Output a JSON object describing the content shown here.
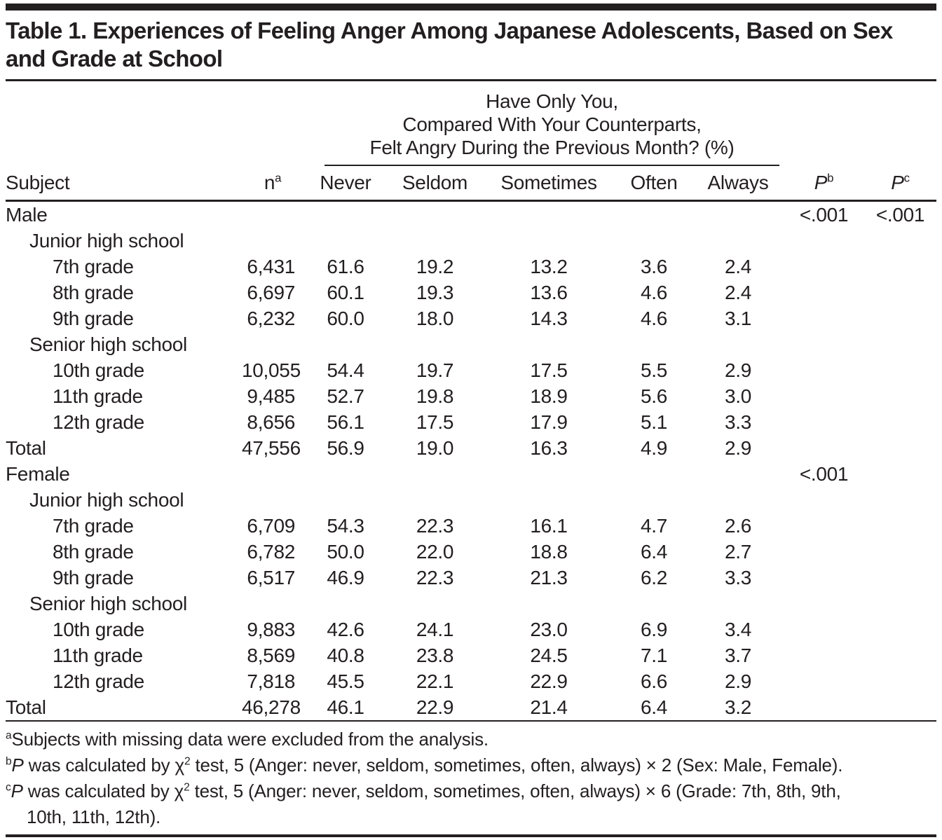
{
  "title": {
    "line1": "Table 1. Experiences of Feeling Anger Among Japanese Adolescents, Based on Sex",
    "line2": "and Grade at School"
  },
  "header": {
    "subject": "Subject",
    "n_base": "n",
    "n_sup": "a",
    "spanner": {
      "line1": "Have Only You,",
      "line2": "Compared With Your Counterparts,",
      "line3": "Felt Angry During the Previous Month? (%)"
    },
    "anger_columns": [
      "Never",
      "Seldom",
      "Sometimes",
      "Often",
      "Always"
    ],
    "p_b": {
      "base": "P",
      "sup": "b"
    },
    "p_c": {
      "base": "P",
      "sup": "c"
    }
  },
  "rows": [
    {
      "label": "Male",
      "indent": 0,
      "n": "",
      "never": "",
      "seldom": "",
      "sometimes": "",
      "often": "",
      "always": "",
      "p_b": "<.001",
      "p_c": "<.001"
    },
    {
      "label": "Junior high school",
      "indent": 1,
      "n": "",
      "never": "",
      "seldom": "",
      "sometimes": "",
      "often": "",
      "always": "",
      "p_b": "",
      "p_c": ""
    },
    {
      "label": "7th grade",
      "indent": 2,
      "n": "6,431",
      "never": "61.6",
      "seldom": "19.2",
      "sometimes": "13.2",
      "often": "3.6",
      "always": "2.4",
      "p_b": "",
      "p_c": ""
    },
    {
      "label": "8th grade",
      "indent": 2,
      "n": "6,697",
      "never": "60.1",
      "seldom": "19.3",
      "sometimes": "13.6",
      "often": "4.6",
      "always": "2.4",
      "p_b": "",
      "p_c": ""
    },
    {
      "label": "9th grade",
      "indent": 2,
      "n": "6,232",
      "never": "60.0",
      "seldom": "18.0",
      "sometimes": "14.3",
      "often": "4.6",
      "always": "3.1",
      "p_b": "",
      "p_c": ""
    },
    {
      "label": "Senior high school",
      "indent": 1,
      "n": "",
      "never": "",
      "seldom": "",
      "sometimes": "",
      "often": "",
      "always": "",
      "p_b": "",
      "p_c": ""
    },
    {
      "label": "10th grade",
      "indent": 2,
      "n": "10,055",
      "never": "54.4",
      "seldom": "19.7",
      "sometimes": "17.5",
      "often": "5.5",
      "always": "2.9",
      "p_b": "",
      "p_c": ""
    },
    {
      "label": "11th grade",
      "indent": 2,
      "n": "9,485",
      "never": "52.7",
      "seldom": "19.8",
      "sometimes": "18.9",
      "often": "5.6",
      "always": "3.0",
      "p_b": "",
      "p_c": ""
    },
    {
      "label": "12th grade",
      "indent": 2,
      "n": "8,656",
      "never": "56.1",
      "seldom": "17.5",
      "sometimes": "17.9",
      "often": "5.1",
      "always": "3.3",
      "p_b": "",
      "p_c": ""
    },
    {
      "label": "Total",
      "indent": 0,
      "n": "47,556",
      "never": "56.9",
      "seldom": "19.0",
      "sometimes": "16.3",
      "often": "4.9",
      "always": "2.9",
      "p_b": "",
      "p_c": ""
    },
    {
      "label": "Female",
      "indent": 0,
      "n": "",
      "never": "",
      "seldom": "",
      "sometimes": "",
      "often": "",
      "always": "",
      "p_b": "<.001",
      "p_c": ""
    },
    {
      "label": "Junior high school",
      "indent": 1,
      "n": "",
      "never": "",
      "seldom": "",
      "sometimes": "",
      "often": "",
      "always": "",
      "p_b": "",
      "p_c": ""
    },
    {
      "label": "7th grade",
      "indent": 2,
      "n": "6,709",
      "never": "54.3",
      "seldom": "22.3",
      "sometimes": "16.1",
      "often": "4.7",
      "always": "2.6",
      "p_b": "",
      "p_c": ""
    },
    {
      "label": "8th grade",
      "indent": 2,
      "n": "6,782",
      "never": "50.0",
      "seldom": "22.0",
      "sometimes": "18.8",
      "often": "6.4",
      "always": "2.7",
      "p_b": "",
      "p_c": ""
    },
    {
      "label": "9th grade",
      "indent": 2,
      "n": "6,517",
      "never": "46.9",
      "seldom": "22.3",
      "sometimes": "21.3",
      "often": "6.2",
      "always": "3.3",
      "p_b": "",
      "p_c": ""
    },
    {
      "label": "Senior high school",
      "indent": 1,
      "n": "",
      "never": "",
      "seldom": "",
      "sometimes": "",
      "often": "",
      "always": "",
      "p_b": "",
      "p_c": ""
    },
    {
      "label": "10th grade",
      "indent": 2,
      "n": "9,883",
      "never": "42.6",
      "seldom": "24.1",
      "sometimes": "23.0",
      "often": "6.9",
      "always": "3.4",
      "p_b": "",
      "p_c": ""
    },
    {
      "label": "11th grade",
      "indent": 2,
      "n": "8,569",
      "never": "40.8",
      "seldom": "23.8",
      "sometimes": "24.5",
      "often": "7.1",
      "always": "3.7",
      "p_b": "",
      "p_c": ""
    },
    {
      "label": "12th grade",
      "indent": 2,
      "n": "7,818",
      "never": "45.5",
      "seldom": "22.1",
      "sometimes": "22.9",
      "often": "6.6",
      "always": "2.9",
      "p_b": "",
      "p_c": ""
    },
    {
      "label": "Total",
      "indent": 0,
      "n": "46,278",
      "never": "46.1",
      "seldom": "22.9",
      "sometimes": "21.4",
      "often": "6.4",
      "always": "3.2",
      "p_b": "",
      "p_c": ""
    }
  ],
  "footnotes": {
    "a": {
      "marker": "a",
      "text": "Subjects with missing data were excluded from the analysis."
    },
    "b": {
      "marker": "b",
      "p": "P",
      "before_sup": " was calculated by χ",
      "sup": "2",
      "after": " test, 5 (Anger: never, seldom, sometimes, often, always) × 2 (Sex: Male, Female)."
    },
    "c": {
      "marker": "c",
      "p": "P",
      "before_sup": " was calculated by χ",
      "sup": "2",
      "after": " test, 5 (Anger: never, seldom, sometimes, often, always) × 6 (Grade: 7th, 8th, 9th,",
      "cont": "10th, 11th, 12th)."
    }
  },
  "colors": {
    "text": "#231f20",
    "rule": "#231f20",
    "background": "#ffffff"
  }
}
